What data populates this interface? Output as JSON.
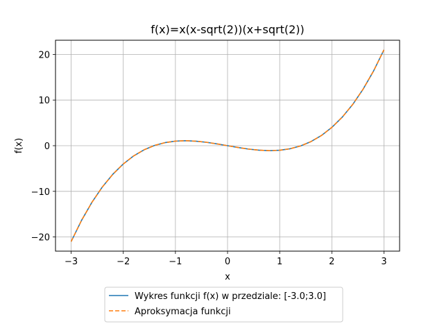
{
  "chart_data": {
    "type": "line",
    "title": "f(x)=x(x-sqrt(2))(x+sqrt(2))",
    "xlabel": "x",
    "ylabel": "f(x)",
    "xlim": [
      -3.3,
      3.3
    ],
    "ylim": [
      -23.1,
      23.1
    ],
    "xticks": [
      -3,
      -2,
      -1,
      0,
      1,
      2,
      3
    ],
    "yticks": [
      -20,
      -10,
      0,
      10,
      20
    ],
    "xtick_labels": [
      "−3",
      "−2",
      "−1",
      "0",
      "1",
      "2",
      "3"
    ],
    "ytick_labels": [
      "−20",
      "−10",
      "0",
      "10",
      "20"
    ],
    "grid": true,
    "legend_position": "below",
    "x": [
      -3.0,
      -2.8,
      -2.6,
      -2.4,
      -2.2,
      -2.0,
      -1.8,
      -1.6,
      -1.4,
      -1.2,
      -1.0,
      -0.8,
      -0.6,
      -0.4,
      -0.2,
      0.0,
      0.2,
      0.4,
      0.6,
      0.8,
      1.0,
      1.2,
      1.4,
      1.6,
      1.8,
      2.0,
      2.2,
      2.4,
      2.6,
      2.8,
      3.0
    ],
    "series": [
      {
        "name": "Wykres funkcji f(x) w przedziale: [-3.0;3.0]",
        "color": "#1f77b4",
        "style": "solid",
        "values": [
          -21.0,
          -16.35,
          -12.38,
          -9.02,
          -6.25,
          -4.0,
          -2.23,
          -0.9,
          0.06,
          0.67,
          1.0,
          1.09,
          0.98,
          0.74,
          0.39,
          0.0,
          -0.39,
          -0.74,
          -0.98,
          -1.09,
          -1.0,
          -0.67,
          -0.06,
          0.9,
          2.23,
          4.0,
          6.25,
          9.02,
          12.38,
          16.35,
          21.0
        ]
      },
      {
        "name": "Aproksymacja funkcji",
        "color": "#ff7f0e",
        "style": "dashed",
        "values": [
          -21.0,
          -16.35,
          -12.38,
          -9.02,
          -6.25,
          -4.0,
          -2.23,
          -0.9,
          0.06,
          0.67,
          1.0,
          1.09,
          0.98,
          0.74,
          0.39,
          0.0,
          -0.39,
          -0.74,
          -0.98,
          -1.09,
          -1.0,
          -0.67,
          -0.06,
          0.9,
          2.23,
          4.0,
          6.25,
          9.02,
          12.38,
          16.35,
          21.0
        ]
      }
    ]
  }
}
